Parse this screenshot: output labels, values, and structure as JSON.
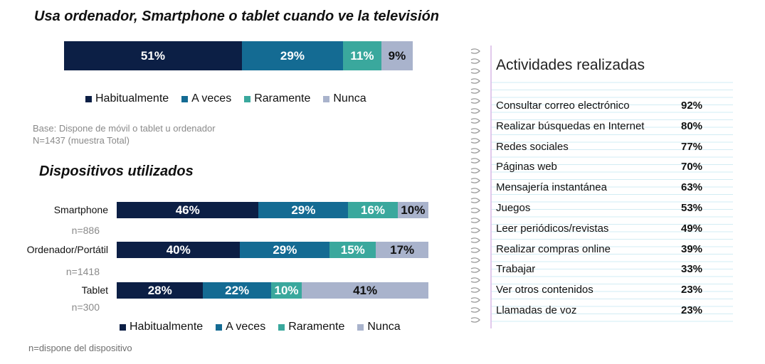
{
  "titles": {
    "main": "Usa ordenador, Smartphone o tablet cuando ve la televisión",
    "devices": "Dispositivos utilizados"
  },
  "colors": {
    "habitualmente": "#0c1f45",
    "a_veces": "#146b93",
    "raramente": "#3aa89d",
    "nunca": "#a9b3cc"
  },
  "legend": [
    "Habitualmente",
    "A veces",
    "Raramente",
    "Nunca"
  ],
  "notes": {
    "base_line1": "Base: Dispone de móvil o tablet u ordenador",
    "base_line2": "N=1437 (muestra Total)",
    "footer": "n=dispone del dispositivo"
  },
  "chart_data": [
    {
      "type": "bar",
      "orientation": "horizontal-stacked-100",
      "title": "Usa ordenador, Smartphone o tablet cuando ve la televisión",
      "categories": [
        ""
      ],
      "series": [
        {
          "name": "Habitualmente",
          "values": [
            51
          ],
          "labels": [
            "51%"
          ]
        },
        {
          "name": "A veces",
          "values": [
            29
          ],
          "labels": [
            "29%"
          ]
        },
        {
          "name": "Raramente",
          "values": [
            11
          ],
          "labels": [
            "11%"
          ]
        },
        {
          "name": "Nunca",
          "values": [
            9
          ],
          "labels": [
            "9%"
          ]
        }
      ]
    },
    {
      "type": "bar",
      "orientation": "horizontal-stacked-100",
      "title": "Dispositivos utilizados",
      "categories": [
        "Smartphone",
        "Ordenador/Portátil",
        "Tablet"
      ],
      "n_labels": [
        "n=886",
        "n=1418",
        "n=300"
      ],
      "series": [
        {
          "name": "Habitualmente",
          "values": [
            46,
            40,
            28
          ],
          "labels": [
            "46%",
            "40%",
            "28%"
          ]
        },
        {
          "name": "A veces",
          "values": [
            29,
            29,
            22
          ],
          "labels": [
            "29%",
            "29%",
            "22%"
          ]
        },
        {
          "name": "Raramente",
          "values": [
            16,
            15,
            10
          ],
          "labels": [
            "16%",
            "15%",
            "10%"
          ]
        },
        {
          "name": "Nunca",
          "values": [
            10,
            17,
            41
          ],
          "labels": [
            "10%",
            "17%",
            "41%"
          ]
        }
      ]
    },
    {
      "type": "table",
      "title": "Actividades realizadas",
      "rows": [
        {
          "label": "Consultar correo electrónico",
          "value": "92%"
        },
        {
          "label": "Realizar búsquedas en Internet",
          "value": "80%"
        },
        {
          "label": "Redes sociales",
          "value": "77%"
        },
        {
          "label": "Páginas web",
          "value": "70%"
        },
        {
          "label": "Mensajería instantánea",
          "value": "63%"
        },
        {
          "label": "Juegos",
          "value": "53%"
        },
        {
          "label": "Leer periódicos/revistas",
          "value": "49%"
        },
        {
          "label": "Realizar compras online",
          "value": "39%"
        },
        {
          "label": "Trabajar",
          "value": "33%"
        },
        {
          "label": "Ver otros contenidos",
          "value": "23%"
        },
        {
          "label": "Llamadas de voz",
          "value": "23%"
        }
      ]
    }
  ]
}
